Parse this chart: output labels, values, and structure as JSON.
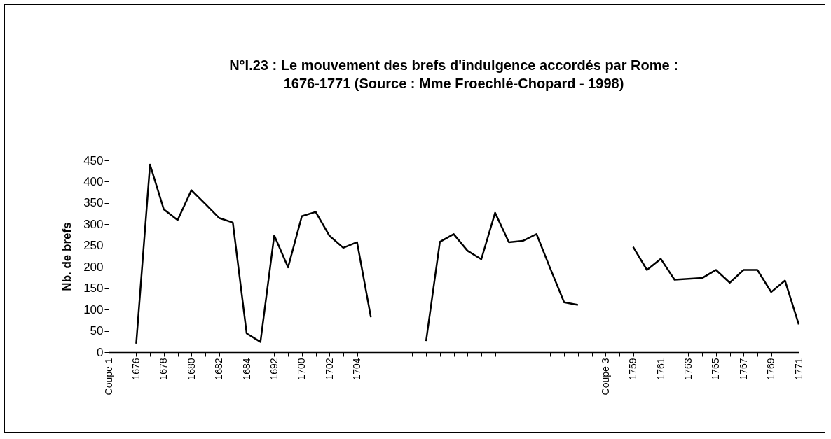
{
  "chart_data": {
    "type": "line",
    "title": "N°I.23 : Le mouvement des brefs d'indulgence accordés par Rome :\n1676-1771 (Source : Mme Froechlé-Chopard - 1998)",
    "ylabel": "Nb. de brefs",
    "categories": [
      "Coupe 1",
      null,
      "1676",
      null,
      "1678",
      null,
      "1680",
      null,
      "1682",
      null,
      "1684",
      null,
      "1692",
      null,
      "1700",
      null,
      "1702",
      null,
      "1704",
      null,
      null,
      null,
      null,
      null,
      null,
      null,
      null,
      null,
      null,
      null,
      null,
      null,
      null,
      null,
      null,
      null,
      "Coupe 3",
      null,
      "1759",
      null,
      "1761",
      null,
      "1763",
      null,
      "1765",
      null,
      "1767",
      null,
      "1769",
      null,
      "1771"
    ],
    "series": [
      {
        "color": "#000000",
        "values": [
          null,
          null,
          20,
          440,
          335,
          310,
          380,
          348,
          315,
          304,
          44,
          24,
          274,
          199,
          319,
          329,
          273,
          245,
          258,
          82,
          null,
          null,
          null,
          26,
          259,
          277,
          238,
          218,
          327,
          258,
          261,
          277,
          196,
          117,
          111,
          null,
          null,
          null,
          247,
          193,
          219,
          170,
          172,
          174,
          193,
          163,
          193,
          193,
          141,
          168,
          65
        ]
      }
    ],
    "ylim": [
      0,
      450
    ],
    "yticks": [
      0,
      50,
      100,
      150,
      200,
      250,
      300,
      350,
      400,
      450
    ],
    "grid": false,
    "marker": "none",
    "line_style": "solid"
  }
}
